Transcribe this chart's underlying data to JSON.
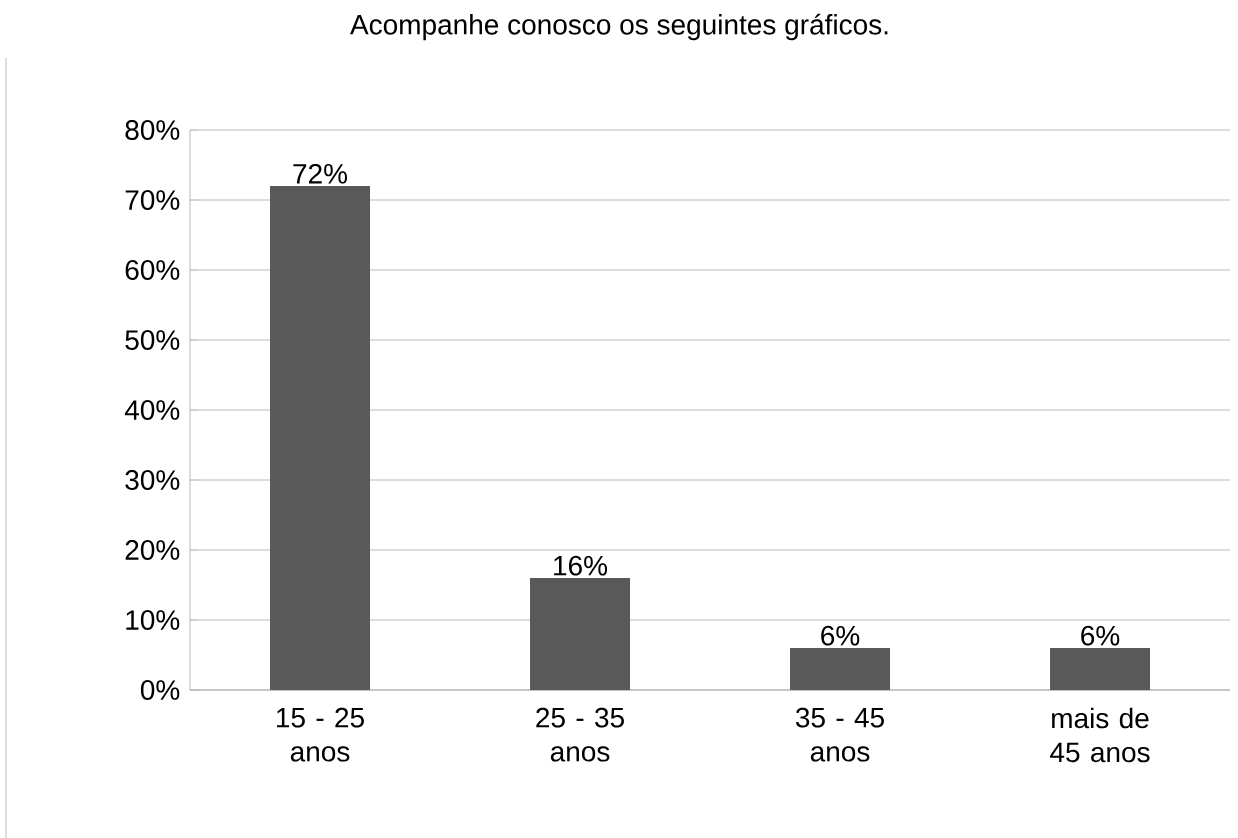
{
  "chart_data": {
    "type": "bar",
    "title": "Acompanhe conosco os seguintes gráficos.",
    "categories": [
      "15 - 25 anos",
      "25 - 35 anos",
      "35 - 45 anos",
      "mais de 45 anos"
    ],
    "values": [
      72,
      16,
      6,
      6
    ],
    "value_labels": [
      "72%",
      "16%",
      "6%",
      "6%"
    ],
    "color": "#595959",
    "ylim": [
      0,
      80
    ],
    "yticks": [
      {
        "value": 0,
        "label": "0%"
      },
      {
        "value": 10,
        "label": "10%"
      },
      {
        "value": 20,
        "label": "20%"
      },
      {
        "value": 30,
        "label": "30%"
      },
      {
        "value": 40,
        "label": "40%"
      },
      {
        "value": 50,
        "label": "50%"
      },
      {
        "value": 60,
        "label": "60%"
      },
      {
        "value": 70,
        "label": "70%"
      },
      {
        "value": 80,
        "label": "80%"
      }
    ],
    "grid": "y"
  }
}
